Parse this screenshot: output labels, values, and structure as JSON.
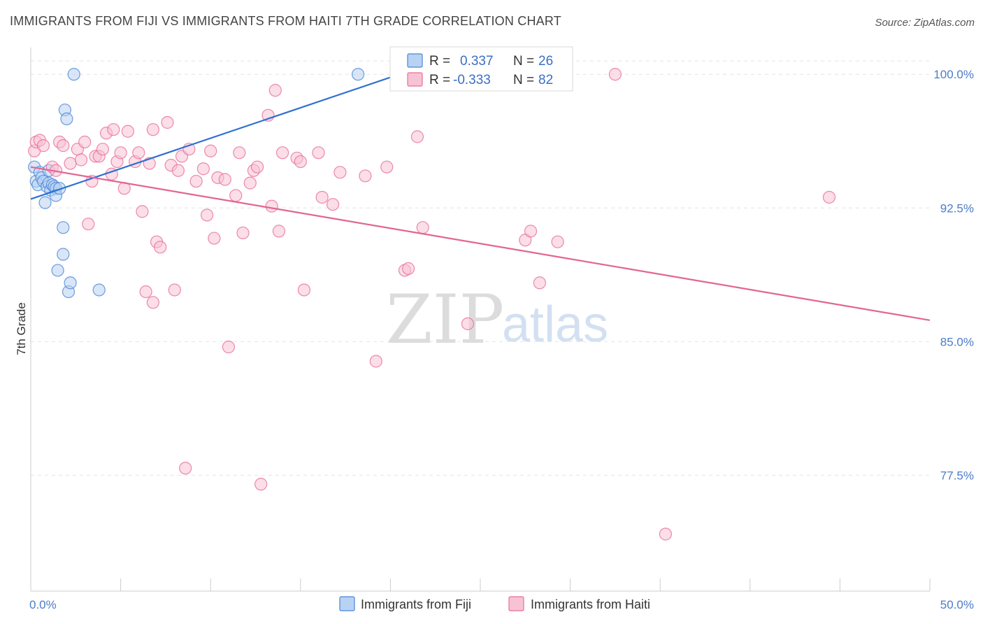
{
  "title": "IMMIGRANTS FROM FIJI VS IMMIGRANTS FROM HAITI 7TH GRADE CORRELATION CHART",
  "source": "Source: ZipAtlas.com",
  "watermark": {
    "zip": "ZIP",
    "atlas": "atlas"
  },
  "colors": {
    "fiji": "#4a86d6",
    "fiji_fill": "#b8d2f3",
    "haiti": "#e86d9a",
    "haiti_fill": "#f7c3d4",
    "axis_text": "#4a7cc9"
  },
  "chart_data": {
    "type": "scatter",
    "title": "IMMIGRANTS FROM FIJI VS IMMIGRANTS FROM HAITI 7TH GRADE CORRELATION CHART",
    "xlabel": "",
    "ylabel": "7th Grade",
    "xlim": [
      0,
      50
    ],
    "ylim": [
      71,
      101.5
    ],
    "x_tick_labels": [
      "0.0%",
      "50.0%"
    ],
    "y_ticks": [
      77.5,
      85.0,
      92.5,
      100.0
    ],
    "y_tick_labels": [
      "77.5%",
      "85.0%",
      "92.5%",
      "100.0%"
    ],
    "legend": [
      {
        "r_label": "R =",
        "r_value": "0.337",
        "n_label": "N =",
        "n_value": "26"
      },
      {
        "r_label": "R =",
        "r_value": "-0.333",
        "n_label": "N =",
        "n_value": "82"
      }
    ],
    "series": [
      {
        "name": "Immigrants from Fiji",
        "points": [
          [
            0.2,
            94.8
          ],
          [
            0.3,
            94.0
          ],
          [
            0.4,
            93.8
          ],
          [
            0.5,
            94.5
          ],
          [
            0.6,
            94.2
          ],
          [
            0.7,
            94.0
          ],
          [
            0.8,
            92.8
          ],
          [
            0.9,
            93.7
          ],
          [
            1.0,
            93.9
          ],
          [
            1.0,
            94.6
          ],
          [
            1.1,
            93.5
          ],
          [
            1.2,
            93.8
          ],
          [
            1.3,
            93.7
          ],
          [
            1.4,
            93.6
          ],
          [
            1.4,
            93.2
          ],
          [
            1.5,
            89.0
          ],
          [
            1.6,
            93.6
          ],
          [
            1.8,
            91.4
          ],
          [
            1.8,
            89.9
          ],
          [
            1.9,
            98.0
          ],
          [
            2.0,
            97.5
          ],
          [
            2.1,
            87.8
          ],
          [
            2.2,
            88.3
          ],
          [
            2.4,
            100.0
          ],
          [
            3.8,
            87.9
          ],
          [
            18.2,
            100.0
          ]
        ],
        "trend": {
          "x": [
            0,
            20.5
          ],
          "y": [
            93.0,
            100.0
          ]
        }
      },
      {
        "name": "Immigrants from Haiti",
        "points": [
          [
            0.2,
            95.7
          ],
          [
            0.3,
            96.2
          ],
          [
            0.5,
            96.3
          ],
          [
            0.7,
            96.0
          ],
          [
            1.2,
            94.8
          ],
          [
            1.4,
            94.6
          ],
          [
            1.6,
            96.2
          ],
          [
            1.8,
            96.0
          ],
          [
            2.2,
            95.0
          ],
          [
            2.6,
            95.8
          ],
          [
            2.8,
            95.2
          ],
          [
            3.0,
            96.2
          ],
          [
            3.2,
            91.6
          ],
          [
            3.4,
            94.0
          ],
          [
            3.6,
            95.4
          ],
          [
            3.8,
            95.4
          ],
          [
            4.0,
            95.8
          ],
          [
            4.2,
            96.7
          ],
          [
            4.5,
            94.4
          ],
          [
            4.8,
            95.1
          ],
          [
            5.0,
            95.6
          ],
          [
            5.2,
            93.6
          ],
          [
            5.4,
            96.8
          ],
          [
            5.8,
            95.1
          ],
          [
            6.0,
            95.6
          ],
          [
            6.2,
            92.3
          ],
          [
            6.4,
            87.8
          ],
          [
            6.6,
            95.0
          ],
          [
            6.8,
            87.2
          ],
          [
            7.0,
            90.6
          ],
          [
            7.2,
            90.3
          ],
          [
            7.6,
            97.3
          ],
          [
            7.8,
            94.9
          ],
          [
            8.0,
            87.9
          ],
          [
            8.2,
            94.6
          ],
          [
            8.4,
            95.4
          ],
          [
            8.6,
            77.9
          ],
          [
            8.8,
            95.8
          ],
          [
            9.2,
            94.0
          ],
          [
            9.6,
            94.7
          ],
          [
            9.8,
            92.1
          ],
          [
            10.0,
            95.7
          ],
          [
            10.2,
            90.8
          ],
          [
            10.4,
            94.2
          ],
          [
            10.8,
            94.1
          ],
          [
            11.0,
            84.7
          ],
          [
            11.4,
            93.2
          ],
          [
            11.6,
            95.6
          ],
          [
            11.8,
            91.1
          ],
          [
            12.2,
            93.9
          ],
          [
            12.4,
            94.6
          ],
          [
            12.6,
            94.8
          ],
          [
            12.8,
            77.0
          ],
          [
            13.2,
            97.7
          ],
          [
            13.4,
            92.6
          ],
          [
            13.6,
            99.1
          ],
          [
            13.8,
            91.2
          ],
          [
            14.0,
            95.6
          ],
          [
            14.8,
            95.3
          ],
          [
            15.0,
            95.1
          ],
          [
            15.2,
            87.9
          ],
          [
            16.0,
            95.6
          ],
          [
            16.2,
            93.1
          ],
          [
            16.8,
            92.7
          ],
          [
            17.2,
            94.5
          ],
          [
            18.6,
            94.3
          ],
          [
            19.2,
            83.9
          ],
          [
            19.8,
            94.8
          ],
          [
            20.8,
            89.0
          ],
          [
            21.0,
            89.1
          ],
          [
            21.5,
            96.5
          ],
          [
            21.8,
            91.4
          ],
          [
            24.3,
            86.0
          ],
          [
            27.5,
            90.7
          ],
          [
            27.8,
            91.2
          ],
          [
            28.3,
            88.3
          ],
          [
            29.3,
            90.6
          ],
          [
            32.5,
            100.0
          ],
          [
            35.3,
            74.2
          ],
          [
            44.4,
            93.1
          ],
          [
            4.6,
            96.9
          ],
          [
            6.8,
            96.9
          ]
        ],
        "trend": {
          "x": [
            0,
            50
          ],
          "y": [
            94.8,
            86.2
          ]
        }
      }
    ]
  }
}
